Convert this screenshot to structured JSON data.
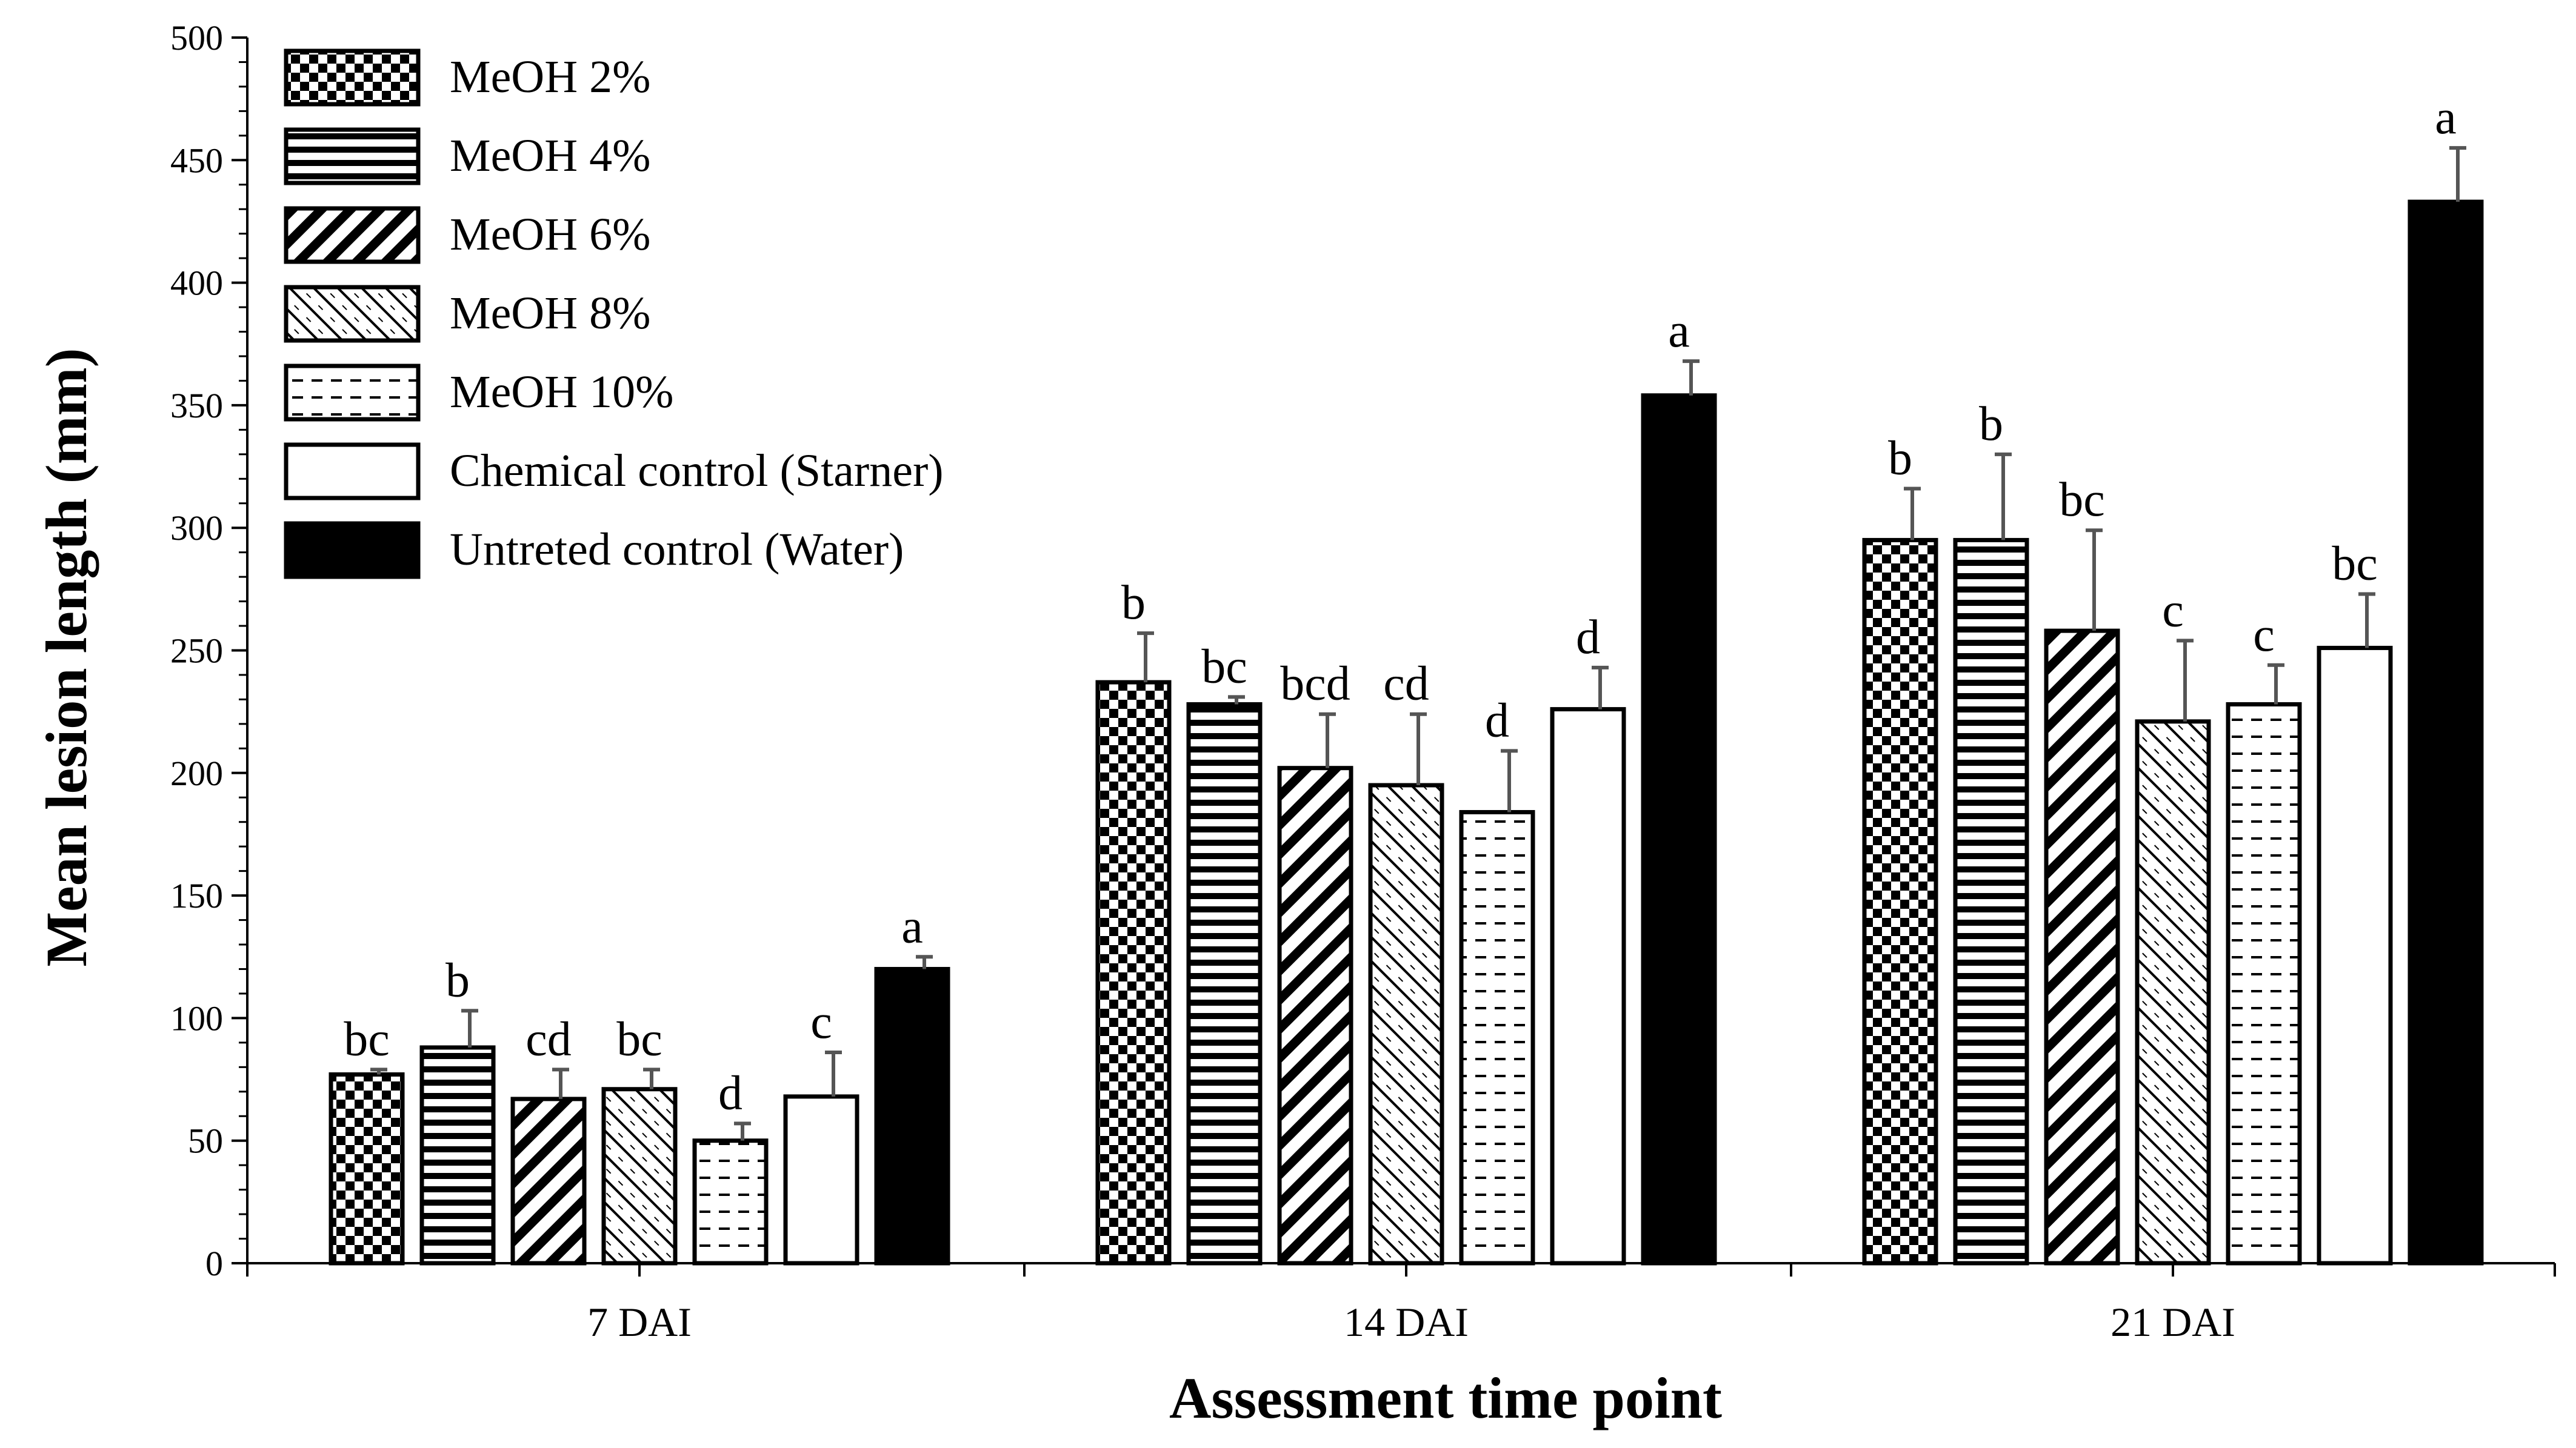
{
  "chart_data": {
    "type": "bar",
    "title": "",
    "xlabel": "Assessment time point",
    "ylabel": "Mean lesion length (mm)",
    "ylim": [
      0,
      500
    ],
    "yticks": [
      0,
      50,
      100,
      150,
      200,
      250,
      300,
      350,
      400,
      450,
      500
    ],
    "ytick_labels": [
      "0",
      "50",
      "100",
      "150",
      "200",
      "250",
      "300",
      "350",
      "400",
      "450",
      "500"
    ],
    "categories": [
      "7 DAI",
      "14 DAI",
      "21 DAI"
    ],
    "legend_position": "top-left",
    "series": [
      {
        "name": "MeOH 2%",
        "pattern": "checker",
        "values": [
          77,
          237,
          295
        ],
        "errors": [
          2,
          20,
          21
        ],
        "letters": [
          "bc",
          "b",
          "b"
        ]
      },
      {
        "name": "MeOH 4%",
        "pattern": "hstripes",
        "values": [
          88,
          228,
          295
        ],
        "errors": [
          15,
          3,
          35
        ],
        "letters": [
          "b",
          "bc",
          "b"
        ]
      },
      {
        "name": "MeOH 6%",
        "pattern": "diag-thick",
        "values": [
          67,
          202,
          258
        ],
        "errors": [
          12,
          22,
          41
        ],
        "letters": [
          "cd",
          "bcd",
          "bc"
        ]
      },
      {
        "name": "MeOH 8%",
        "pattern": "diag-zigzag",
        "values": [
          71,
          195,
          221
        ],
        "errors": [
          8,
          29,
          33
        ],
        "letters": [
          "bc",
          "cd",
          "c"
        ]
      },
      {
        "name": "MeOH 10%",
        "pattern": "dashes",
        "values": [
          50,
          184,
          228
        ],
        "errors": [
          7,
          25,
          16
        ],
        "letters": [
          "d",
          "d",
          "c"
        ]
      },
      {
        "name": "Chemical control (Starner)",
        "pattern": "white",
        "values": [
          68,
          226,
          251
        ],
        "errors": [
          18,
          17,
          22
        ],
        "letters": [
          "c",
          "d",
          "bc"
        ]
      },
      {
        "name": "Untreted control (Water)",
        "pattern": "black",
        "values": [
          120,
          354,
          433
        ],
        "errors": [
          5,
          14,
          22
        ],
        "letters": [
          "a",
          "a",
          "a"
        ]
      }
    ]
  }
}
